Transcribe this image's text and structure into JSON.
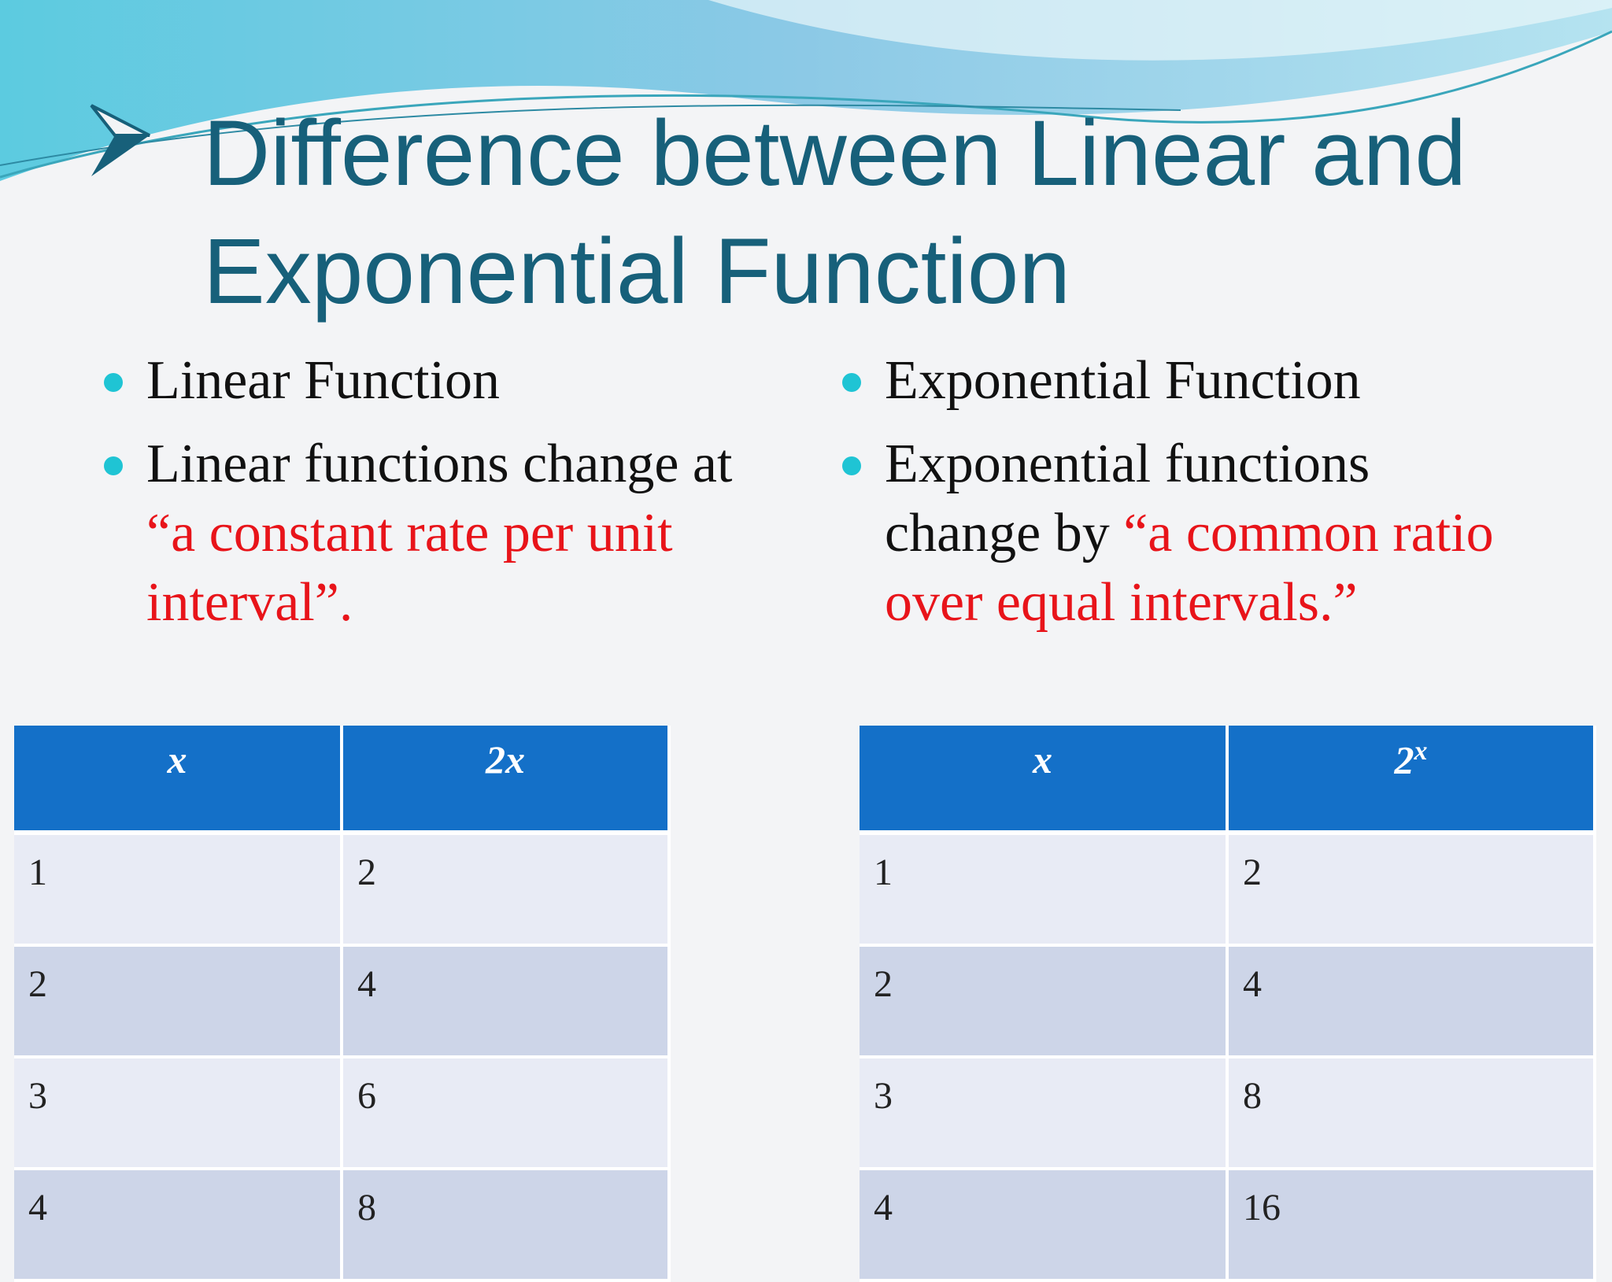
{
  "title": "Difference between Linear and Exponential Function",
  "left": {
    "bullets": [
      {
        "text": "Linear Function"
      },
      {
        "text": "Linear functions change at",
        "highlight": "“a constant rate per unit interval”."
      }
    ],
    "table": {
      "header": [
        {
          "base": "x"
        },
        {
          "base": "2x"
        }
      ],
      "rows": [
        [
          "1",
          "2"
        ],
        [
          "2",
          "4"
        ],
        [
          "3",
          "6"
        ],
        [
          "4",
          "8"
        ]
      ]
    }
  },
  "right": {
    "bullets": [
      {
        "text": "Exponential Function"
      },
      {
        "text": "Exponential functions change by",
        "highlight": "“a common ratio over equal intervals.”"
      }
    ],
    "table": {
      "header": [
        {
          "base": "x"
        },
        {
          "base": "2",
          "exponent": "x"
        }
      ],
      "rows": [
        [
          "1",
          "2"
        ],
        [
          "2",
          "4"
        ],
        [
          "3",
          "8"
        ],
        [
          "4",
          "16"
        ]
      ]
    }
  }
}
